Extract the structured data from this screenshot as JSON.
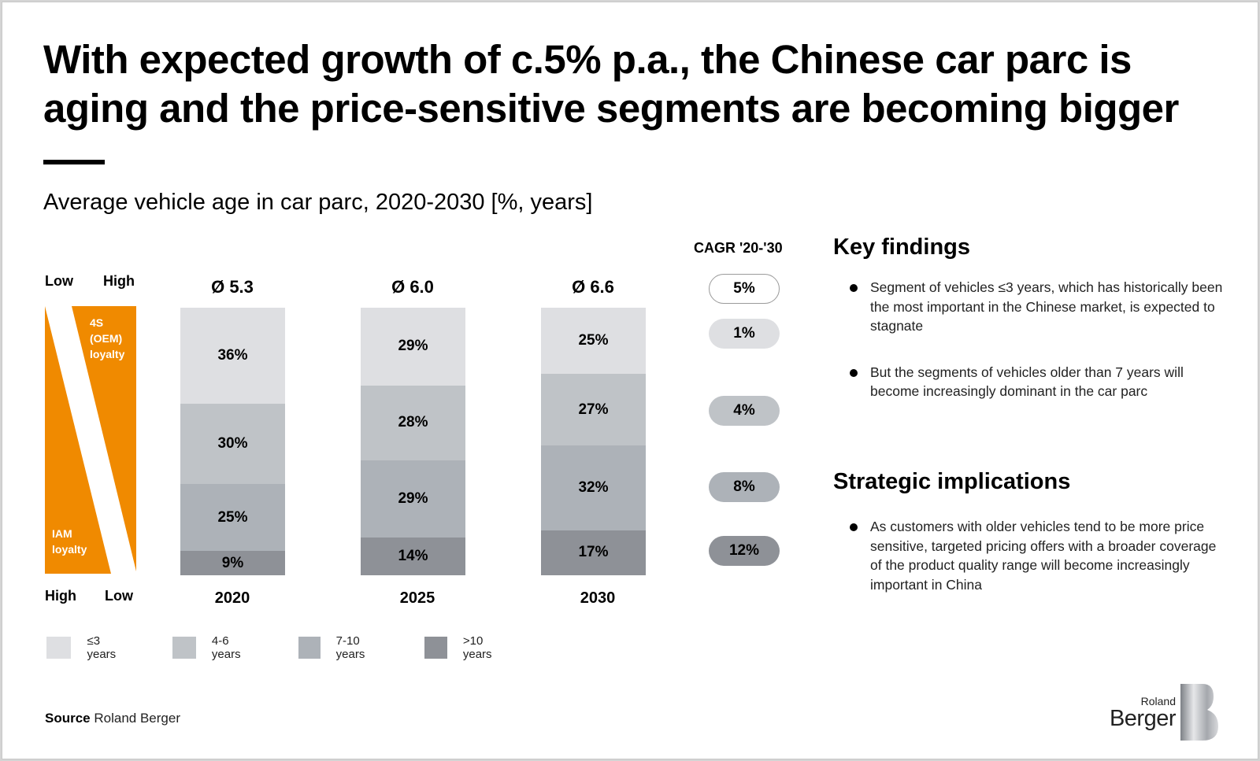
{
  "slide": {
    "title": "With expected growth of c.5% p.a., the Chinese car parc is aging and the price-sensitive segments are becoming bigger",
    "subtitle": "Average vehicle age in car parc, 2020-2030 [%, years]"
  },
  "loyalty_graphic": {
    "top_left": "Low",
    "top_right": "High",
    "bottom_left": "High",
    "bottom_right": "Low",
    "upper_label": "4S\n(OEM)\nloyalty",
    "lower_label": "IAM\nloyalty",
    "color": "#f08a00"
  },
  "chart_data": {
    "type": "bar",
    "stacked": true,
    "normalized_percent": true,
    "title": "Average vehicle age in car parc, 2020-2030 [%, years]",
    "xlabel": "",
    "ylabel": "",
    "ylim": [
      0,
      100
    ],
    "categories": [
      "2020",
      "2025",
      "2030"
    ],
    "averages": [
      "Ø 5.3",
      "Ø 6.0",
      "Ø 6.6"
    ],
    "series": [
      {
        "name": "≤3 years",
        "color": "#dedfe2",
        "values": [
          36,
          29,
          25
        ],
        "cagr": "1%"
      },
      {
        "name": "4-6 years",
        "color": "#bfc3c7",
        "values": [
          30,
          28,
          27
        ],
        "cagr": "4%"
      },
      {
        "name": "7-10 years",
        "color": "#adb2b8",
        "values": [
          25,
          29,
          32
        ],
        "cagr": "8%"
      },
      {
        "name": ">10 years",
        "color": "#8e9197",
        "values": [
          9,
          14,
          17
        ],
        "cagr": "12%"
      }
    ],
    "total_cagr": "5%",
    "cagr_header": "CAGR '20-'30",
    "legend_position": "bottom-left"
  },
  "key_findings": {
    "heading": "Key findings",
    "bullets": [
      "Segment of vehicles ≤3 years, which has historically been the most important in the Chinese market, is expected to stagnate",
      "But the segments of vehicles older than 7 years will become increasingly dominant in the car parc"
    ]
  },
  "strategic_implications": {
    "heading": "Strategic implications",
    "bullets": [
      "As customers with older vehicles tend to be more price sensitive, targeted pricing offers with a broader coverage of the product quality range will become increasingly important in China"
    ]
  },
  "footer": {
    "source_label": "Source",
    "source_value": "Roland Berger",
    "logo_line1": "Roland",
    "logo_line2": "Berger"
  }
}
